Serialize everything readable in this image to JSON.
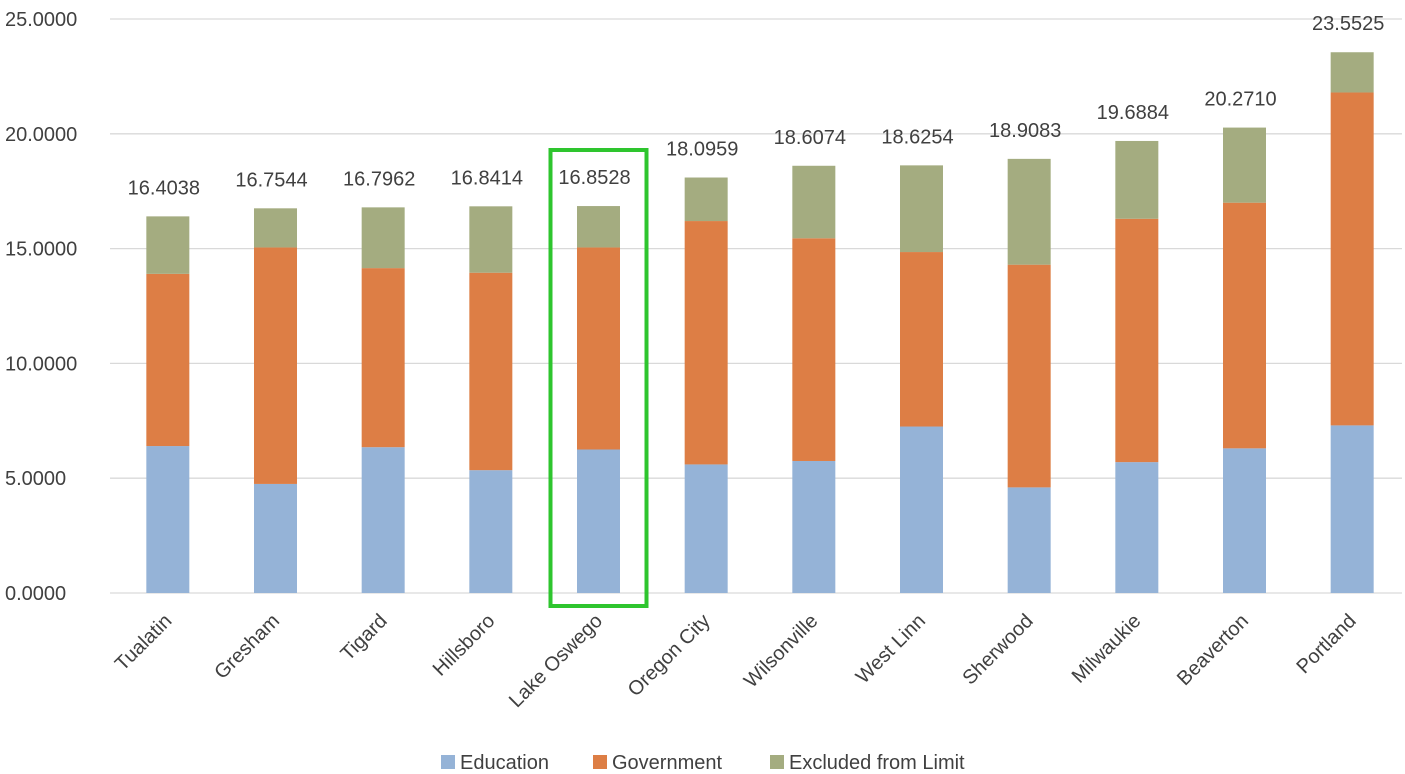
{
  "chart_data": {
    "type": "bar",
    "stacked": true,
    "title": "",
    "xlabel": "",
    "ylabel": "",
    "ylim": [
      0,
      25
    ],
    "yticks": [
      "0.0000",
      "5.0000",
      "10.0000",
      "15.0000",
      "20.0000",
      "25.0000"
    ],
    "ytick_values": [
      0,
      5,
      10,
      15,
      20,
      25
    ],
    "grid": true,
    "legend_position": "bottom",
    "categories": [
      "Tualatin",
      "Gresham",
      "Tigard",
      "Hillsboro",
      "Lake Oswego",
      "Oregon City",
      "Wilsonville",
      "West Linn",
      "Sherwood",
      "Milwaukie",
      "Beaverton",
      "Portland"
    ],
    "series": [
      {
        "name": "Education",
        "color": "#95b3d7",
        "values": [
          6.4,
          4.75,
          6.35,
          5.35,
          6.25,
          5.6,
          5.75,
          7.25,
          4.6,
          5.7,
          6.3,
          7.3
        ]
      },
      {
        "name": "Government",
        "color": "#dd7e45",
        "values": [
          7.5,
          10.3,
          7.8,
          8.6,
          8.8,
          10.6,
          9.7,
          7.6,
          9.7,
          10.6,
          10.7,
          14.5
        ]
      },
      {
        "name": "Excluded from Limit",
        "color": "#a4ac80",
        "values": [
          2.5038,
          1.7044,
          2.6462,
          2.8914,
          1.8028,
          1.8959,
          3.1574,
          3.7754,
          4.6083,
          3.3884,
          3.271,
          1.7525
        ]
      }
    ],
    "totals": [
      "16.4038",
      "16.7544",
      "16.7962",
      "16.8414",
      "16.8528",
      "18.0959",
      "18.6074",
      "18.6254",
      "18.9083",
      "19.6884",
      "20.2710",
      "23.5525"
    ],
    "highlight": {
      "category": "Lake Oswego",
      "color": "#2ec52e"
    },
    "gridline_color": "#d9d9d9"
  }
}
